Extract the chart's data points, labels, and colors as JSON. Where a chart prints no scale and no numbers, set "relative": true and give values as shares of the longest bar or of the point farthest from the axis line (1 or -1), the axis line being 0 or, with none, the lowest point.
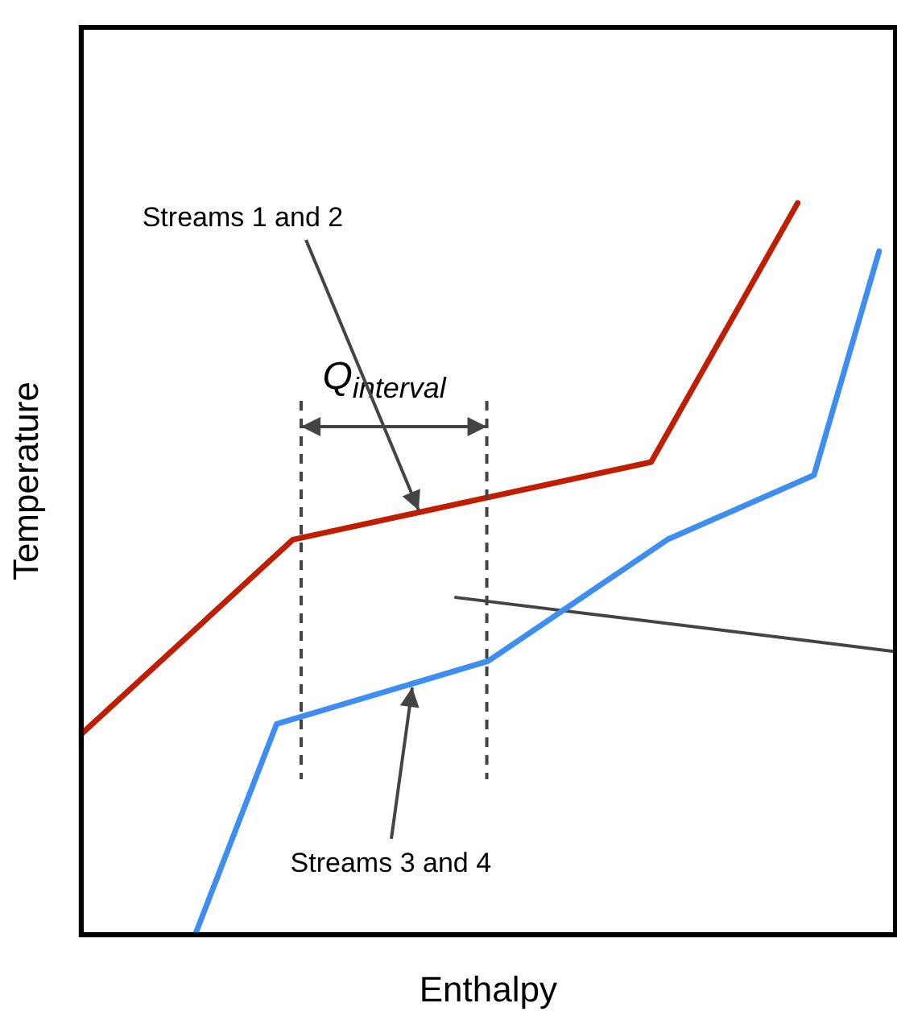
{
  "chart_data": {
    "type": "line",
    "relative": true,
    "xlabel": "Enthalpy",
    "ylabel": "Temperature",
    "legend": false,
    "marker": "none",
    "line_style": "solid",
    "categories": [
      null,
      null,
      null,
      null,
      null,
      null,
      null,
      null,
      null,
      null,
      null,
      null,
      null,
      null,
      null,
      null,
      null,
      null,
      null,
      null,
      null,
      null,
      null,
      null,
      null,
      null,
      null,
      null,
      null,
      null,
      null,
      null,
      null,
      null,
      null,
      null,
      null,
      null,
      null,
      null,
      null,
      null,
      null,
      null,
      null,
      null,
      null,
      null,
      null,
      null,
      null
    ],
    "series": [
      {
        "color": "#c01e00",
        "values": [
          0.274,
          null,
          null,
          null,
          null,
          null,
          null,
          null,
          null,
          null,
          null,
          null,
          null,
          0.54,
          null,
          null,
          null,
          null,
          null,
          null,
          null,
          null,
          null,
          null,
          null,
          null,
          null,
          null,
          null,
          null,
          null,
          null,
          null,
          null,
          null,
          0.646,
          null,
          null,
          null,
          null,
          null,
          null,
          null,
          null,
          1,
          null,
          null,
          null,
          null,
          null,
          null
        ]
      },
      {
        "color": "#3d8ef0",
        "values": [
          null,
          null,
          null,
          null,
          null,
          null,
          null,
          0,
          null,
          null,
          null,
          null,
          0.288,
          null,
          null,
          null,
          null,
          null,
          null,
          null,
          null,
          null,
          null,
          null,
          null,
          0.374,
          null,
          null,
          null,
          null,
          null,
          null,
          null,
          null,
          null,
          null,
          0.54,
          null,
          null,
          null,
          null,
          null,
          null,
          null,
          null,
          0.628,
          null,
          null,
          null,
          0.934,
          null
        ]
      },
      {
        "color": "#444444",
        "values": [
          null,
          null,
          null,
          null,
          null,
          null,
          null,
          null,
          null,
          null,
          null,
          null,
          null,
          null,
          null,
          null,
          null,
          null,
          null,
          null,
          null,
          null,
          null,
          0.461,
          null,
          null,
          null,
          null,
          null,
          null,
          null,
          null,
          null,
          null,
          null,
          null,
          null,
          null,
          null,
          null,
          null,
          null,
          null,
          null,
          null,
          null,
          null,
          null,
          null,
          null,
          0.387
        ]
      }
    ],
    "annotations": [
      "Streams 1 and 2",
      "Streams 3 and 4",
      "Q$_{interval}$"
    ]
  }
}
